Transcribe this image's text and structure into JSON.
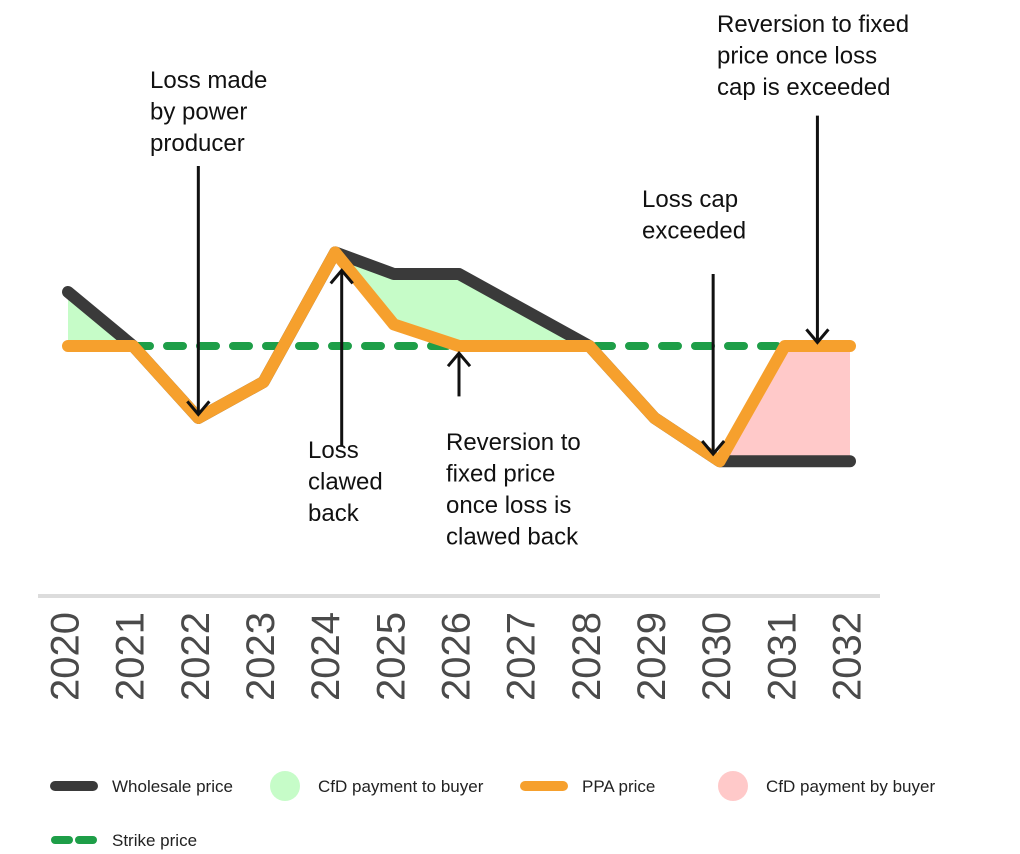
{
  "chart_data": {
    "type": "line",
    "title": "",
    "xlabel": "",
    "ylabel": "",
    "x": [
      "2020",
      "2021",
      "2022",
      "2023",
      "2024",
      "2025",
      "2026",
      "2027",
      "2028",
      "2029",
      "2030",
      "2031",
      "2032"
    ],
    "series": [
      {
        "name": "Wholesale price",
        "points": [
          [
            2020,
            55
          ],
          [
            2021,
            40
          ],
          [
            2022,
            20
          ],
          [
            2023,
            30
          ],
          [
            2024.1,
            66
          ],
          [
            2025,
            60
          ],
          [
            2026,
            60
          ],
          [
            2027,
            50
          ],
          [
            2028,
            40
          ],
          [
            2029,
            20
          ],
          [
            2030,
            8
          ],
          [
            2031,
            8
          ],
          [
            2032,
            8
          ]
        ]
      },
      {
        "name": "PPA price",
        "points": [
          [
            2020,
            40
          ],
          [
            2021,
            40
          ],
          [
            2022,
            20
          ],
          [
            2023,
            30
          ],
          [
            2024.1,
            66
          ],
          [
            2025,
            46
          ],
          [
            2026,
            40
          ],
          [
            2027,
            40
          ],
          [
            2028,
            40
          ],
          [
            2029,
            20
          ],
          [
            2030,
            8
          ],
          [
            2031,
            40
          ],
          [
            2032,
            40
          ]
        ]
      },
      {
        "name": "Strike price",
        "constant": 40,
        "range": [
          2020,
          2032
        ]
      }
    ],
    "areas": [
      {
        "name": "CfD payment to buyer",
        "between": [
          "Wholesale price",
          "PPA price"
        ],
        "segments": [
          [
            2020,
            2021
          ],
          [
            2024.1,
            2028
          ]
        ]
      },
      {
        "name": "CfD payment by buyer",
        "between": [
          "PPA price",
          "Wholesale price"
        ],
        "segments": [
          [
            2030,
            2032
          ]
        ]
      }
    ],
    "annotations": [
      {
        "lines": [
          "Loss made",
          "by power",
          "producer"
        ],
        "arrow_x": 2022,
        "arrow": "down",
        "arrow_from_value": 90,
        "arrow_to_value": 21
      },
      {
        "lines": [
          "Loss",
          "clawed",
          "back"
        ],
        "arrow_x": 2024.2,
        "arrow": "up",
        "arrow_from_value": 12,
        "arrow_to_value": 61
      },
      {
        "lines": [
          "Reversion to",
          "fixed price",
          "once loss is",
          "clawed back"
        ],
        "arrow_x": 2026,
        "arrow": "up",
        "arrow_from_value": 26,
        "arrow_to_value": 38
      },
      {
        "lines": [
          "Loss cap",
          "exceeded"
        ],
        "arrow_x": 2029.9,
        "arrow": "down",
        "arrow_from_value": 60,
        "arrow_to_value": 10
      },
      {
        "lines": [
          "Reversion to fixed",
          "price once loss",
          "cap is exceeded"
        ],
        "arrow_x": 2031.5,
        "arrow": "down",
        "arrow_from_value": 104,
        "arrow_to_value": 41
      }
    ],
    "legend": [
      {
        "label": "Wholesale price",
        "kind": "line",
        "color": "#3a3a3a"
      },
      {
        "label": "CfD payment to buyer",
        "kind": "dot",
        "color": "#c6fcc8"
      },
      {
        "label": "PPA price",
        "kind": "line",
        "color": "#f6a02d"
      },
      {
        "label": "CfD payment by buyer",
        "kind": "dot",
        "color": "#ffc9c9"
      },
      {
        "label": "Strike price",
        "kind": "dashed",
        "color": "#1e9e48"
      }
    ],
    "legend_position": "bottom",
    "ylim": [
      0,
      125
    ],
    "grid": false,
    "colors": {
      "wholesale": "#3a3a3a",
      "ppa": "#f6a02d",
      "strike": "#1e9e48",
      "payment_to_buyer": "#c6fcc8",
      "payment_by_buyer": "#ffc9c9",
      "axis": "#dcdcdc"
    }
  }
}
